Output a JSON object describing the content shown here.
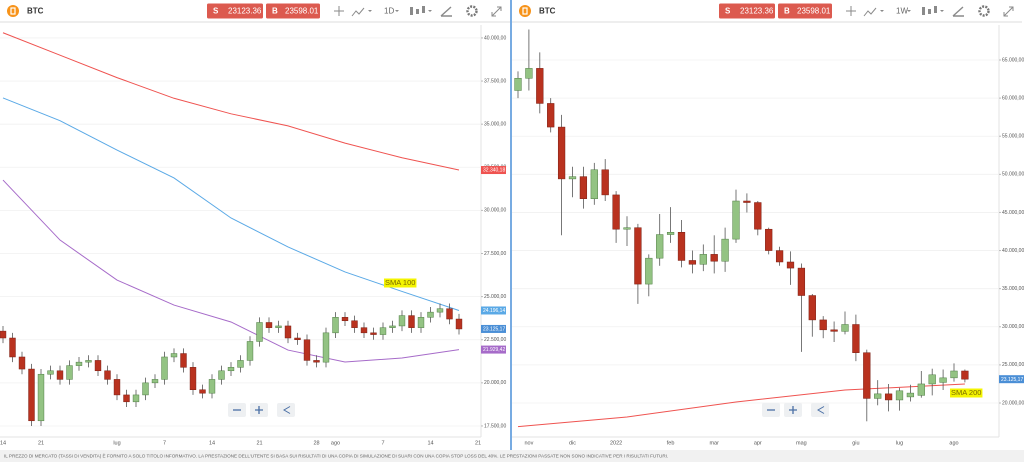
{
  "chart_data": [
    {
      "type": "candlestick",
      "toolbar": {
        "symbol": "BTC",
        "sell_label": "S",
        "sell_price": 23123.36,
        "buy_label": "B",
        "buy_price": 23598.01,
        "timeframe": "1D"
      },
      "categories": [
        "14",
        null,
        null,
        null,
        "21",
        null,
        null,
        null,
        null,
        null,
        null,
        null,
        "lug",
        null,
        null,
        null,
        null,
        "7",
        null,
        null,
        null,
        null,
        "14",
        null,
        null,
        null,
        null,
        "21",
        null,
        null,
        null,
        null,
        null,
        "28",
        null,
        "ago",
        null,
        null,
        null,
        null,
        "7",
        null,
        null,
        null,
        null,
        "14",
        null,
        null,
        null,
        null,
        "21"
      ],
      "candles": {
        "open": [
          23000,
          22600,
          21500,
          20800,
          17800,
          20500,
          20700,
          20200,
          21000,
          21200,
          21300,
          20700,
          20200,
          19300,
          18900,
          19300,
          20000,
          20200,
          21500,
          21700,
          20900,
          19600,
          19400,
          20200,
          20700,
          20900,
          21300,
          22400,
          23500,
          23200,
          23300,
          22600,
          22500,
          21300,
          21200,
          22900,
          23800,
          23600,
          23200,
          22900,
          22800,
          23200,
          23300,
          23900,
          23200,
          23800,
          24100,
          24300,
          23700,
          null,
          null
        ],
        "high": [
          23300,
          22900,
          21800,
          21100,
          20800,
          21000,
          21000,
          21300,
          21500,
          21600,
          21600,
          21000,
          20500,
          19600,
          19600,
          20300,
          20500,
          21800,
          22000,
          22000,
          21200,
          19900,
          20500,
          21000,
          21200,
          21600,
          22700,
          23800,
          23800,
          23600,
          23600,
          22900,
          22800,
          21600,
          23200,
          24100,
          24100,
          23900,
          23500,
          23200,
          23500,
          23600,
          24200,
          24200,
          24100,
          24400,
          24600,
          24600,
          24000,
          null,
          null
        ],
        "low": [
          22300,
          21200,
          20500,
          17500,
          17500,
          20200,
          19900,
          19900,
          20700,
          20900,
          20400,
          19900,
          19000,
          18600,
          18600,
          19000,
          19700,
          19900,
          21200,
          20600,
          19300,
          19100,
          19100,
          19900,
          20400,
          20600,
          21000,
          22100,
          22900,
          22900,
          22300,
          22200,
          21000,
          20900,
          20900,
          22600,
          23300,
          22900,
          22600,
          22500,
          22500,
          22900,
          23000,
          22900,
          22900,
          23500,
          23800,
          23400,
          22800,
          null,
          null
        ],
        "close": [
          22600,
          21500,
          20800,
          17800,
          20500,
          20700,
          20200,
          21000,
          21200,
          21300,
          20700,
          20200,
          19300,
          18900,
          19300,
          20000,
          20200,
          21500,
          21700,
          20900,
          19600,
          19400,
          20200,
          20700,
          20900,
          21300,
          22400,
          23500,
          23200,
          23300,
          22600,
          22500,
          21300,
          21200,
          22900,
          23800,
          23600,
          23200,
          22900,
          22800,
          23200,
          23300,
          23900,
          23200,
          23800,
          24100,
          24300,
          23700,
          23125.17,
          null,
          null
        ]
      },
      "up_color": "#93c383",
      "down_color": "#b9321f",
      "ylim": [
        16860,
        40750
      ],
      "yticks": [
        {
          "value": 17500,
          "label": "17.500,00"
        },
        {
          "value": 20000,
          "label": "20.000,00"
        },
        {
          "value": 22500,
          "label": "22.500,00"
        },
        {
          "value": 25000,
          "label": "25.000,00"
        },
        {
          "value": 27500,
          "label": "27.500,00"
        },
        {
          "value": 30000,
          "label": "30.000,00"
        },
        {
          "value": 32500,
          "label": "32.500,00"
        },
        {
          "value": 35000,
          "label": "35.000,00"
        },
        {
          "value": 37500,
          "label": "37.500,00"
        },
        {
          "value": 40000,
          "label": "40.000,00"
        }
      ],
      "grid": true,
      "series": [
        {
          "color": "#ef5350",
          "x": [
            0,
            6,
            12,
            18,
            24,
            30,
            36,
            42,
            48
          ],
          "values": [
            40300,
            39000,
            37700,
            36500,
            35600,
            34900,
            33900,
            33050,
            32340.18
          ],
          "value_labels": [
            null,
            null,
            null,
            null,
            null,
            null,
            null,
            null,
            "32.340,18"
          ]
        },
        {
          "color": "#5aa9e6",
          "x": [
            0,
            6,
            12,
            18,
            24,
            30,
            36,
            42,
            48
          ],
          "values": [
            36520,
            35200,
            33500,
            31880,
            29560,
            27880,
            26430,
            25300,
            24196.14
          ],
          "value_labels": [
            null,
            null,
            null,
            null,
            null,
            null,
            null,
            null,
            "24.196,14"
          ]
        },
        {
          "color": "#a66bc9",
          "x": [
            0,
            6,
            12,
            18,
            24,
            30,
            36,
            42,
            48
          ],
          "values": [
            31760,
            28280,
            25960,
            24510,
            23530,
            21900,
            21210,
            21440,
            21929.42
          ],
          "value_labels": [
            null,
            null,
            null,
            null,
            null,
            null,
            null,
            null,
            "21.929,42"
          ]
        }
      ],
      "last_price": {
        "value": 23125.17,
        "label": "23.125,17"
      },
      "annotations": [
        {
          "text": "SMA 100"
        }
      ]
    },
    {
      "type": "candlestick",
      "toolbar": {
        "symbol": "BTC",
        "sell_label": "S",
        "sell_price": 23123.36,
        "buy_label": "B",
        "buy_price": 23598.01,
        "timeframe": "1W"
      },
      "categories": [
        null,
        "nov",
        null,
        null,
        null,
        "dic",
        null,
        null,
        null,
        "2022",
        null,
        null,
        null,
        null,
        "feb",
        null,
        null,
        null,
        "mar",
        null,
        null,
        null,
        "apr",
        null,
        null,
        null,
        "mag",
        null,
        null,
        null,
        null,
        "giu",
        null,
        null,
        null,
        "lug",
        null,
        null,
        null,
        null,
        "ago",
        null
      ],
      "candles": {
        "open": [
          61000,
          62600,
          63900,
          59300,
          56200,
          49400,
          49700,
          46800,
          50600,
          47300,
          42800,
          43000,
          35600,
          39000,
          42100,
          42400,
          38700,
          38200,
          39500,
          38600,
          41500,
          46500,
          46300,
          42800,
          40000,
          38500,
          37700,
          34100,
          30900,
          29600,
          29400,
          30300,
          26600,
          20600,
          21200,
          20400,
          20800,
          21000,
          22500,
          22700,
          23300,
          24200
        ],
        "high": [
          63500,
          69000,
          66000,
          60000,
          57800,
          51000,
          51000,
          51500,
          52000,
          47800,
          44500,
          43500,
          39500,
          44800,
          45700,
          44000,
          40000,
          40800,
          42000,
          43000,
          48000,
          47500,
          46500,
          43000,
          40500,
          39900,
          38300,
          34300,
          31400,
          30700,
          32000,
          31600,
          27000,
          23000,
          22500,
          22000,
          22400,
          24200,
          24500,
          24400,
          25200,
          24400
        ],
        "low": [
          60000,
          61000,
          58000,
          55500,
          42000,
          47000,
          45500,
          46000,
          46500,
          41000,
          40600,
          33000,
          34000,
          38000,
          41000,
          37800,
          37000,
          37300,
          37000,
          37200,
          41000,
          45000,
          42000,
          39500,
          38000,
          35500,
          26700,
          28700,
          28500,
          28000,
          29000,
          25500,
          17600,
          19700,
          18900,
          19000,
          20200,
          20700,
          21000,
          21700,
          22800,
          22700
        ],
        "close": [
          62600,
          63900,
          59300,
          56200,
          49400,
          49700,
          46800,
          50600,
          47300,
          42800,
          43000,
          35600,
          39000,
          42100,
          42400,
          38700,
          38200,
          39500,
          38600,
          41500,
          46500,
          46300,
          42800,
          40000,
          38500,
          37700,
          34100,
          30900,
          29600,
          29400,
          30300,
          26600,
          20600,
          21200,
          20400,
          21600,
          21300,
          22500,
          23700,
          23300,
          24200,
          23125.17
        ]
      },
      "up_color": "#93c383",
      "down_color": "#b9321f",
      "ylim": [
        15540,
        69590
      ],
      "yticks": [
        {
          "value": 20000,
          "label": "20.000,00"
        },
        {
          "value": 25000,
          "label": "25.000,00"
        },
        {
          "value": 30000,
          "label": "30.000,00"
        },
        {
          "value": 35000,
          "label": "35.000,00"
        },
        {
          "value": 40000,
          "label": "40.000,00"
        },
        {
          "value": 45000,
          "label": "45.000,00"
        },
        {
          "value": 50000,
          "label": "50.000,00"
        },
        {
          "value": 55000,
          "label": "55.000,00"
        },
        {
          "value": 60000,
          "label": "60.000,00"
        },
        {
          "value": 65000,
          "label": "65.000,00"
        }
      ],
      "grid": true,
      "series": [
        {
          "color": "#ef5350",
          "x": [
            0,
            10,
            20,
            30,
            41
          ],
          "values": [
            16900,
            18160,
            20130,
            21700,
            22490
          ]
        }
      ],
      "last_price": {
        "value": 23125.17,
        "label": "23.125,17"
      },
      "annotations": [
        {
          "text": "SMA 200"
        }
      ]
    }
  ],
  "disclaimer": "IL PREZZO DI MERCATO (TASSI DI VENDITA) È FORNITO A SOLO TITOLO INFORMATIVO. LA PRESTAZIONE DELL'UTENTE SI BASA SUI RISULTATI DI UNA COPIA DI SIMULAZIONE DI SUARI CON UNA COPIA STOP LOSS DEL 40%. LE PRESTAZIONI PASSATE NON SONO INDICATIVE PER I RISULTATI FUTURI."
}
